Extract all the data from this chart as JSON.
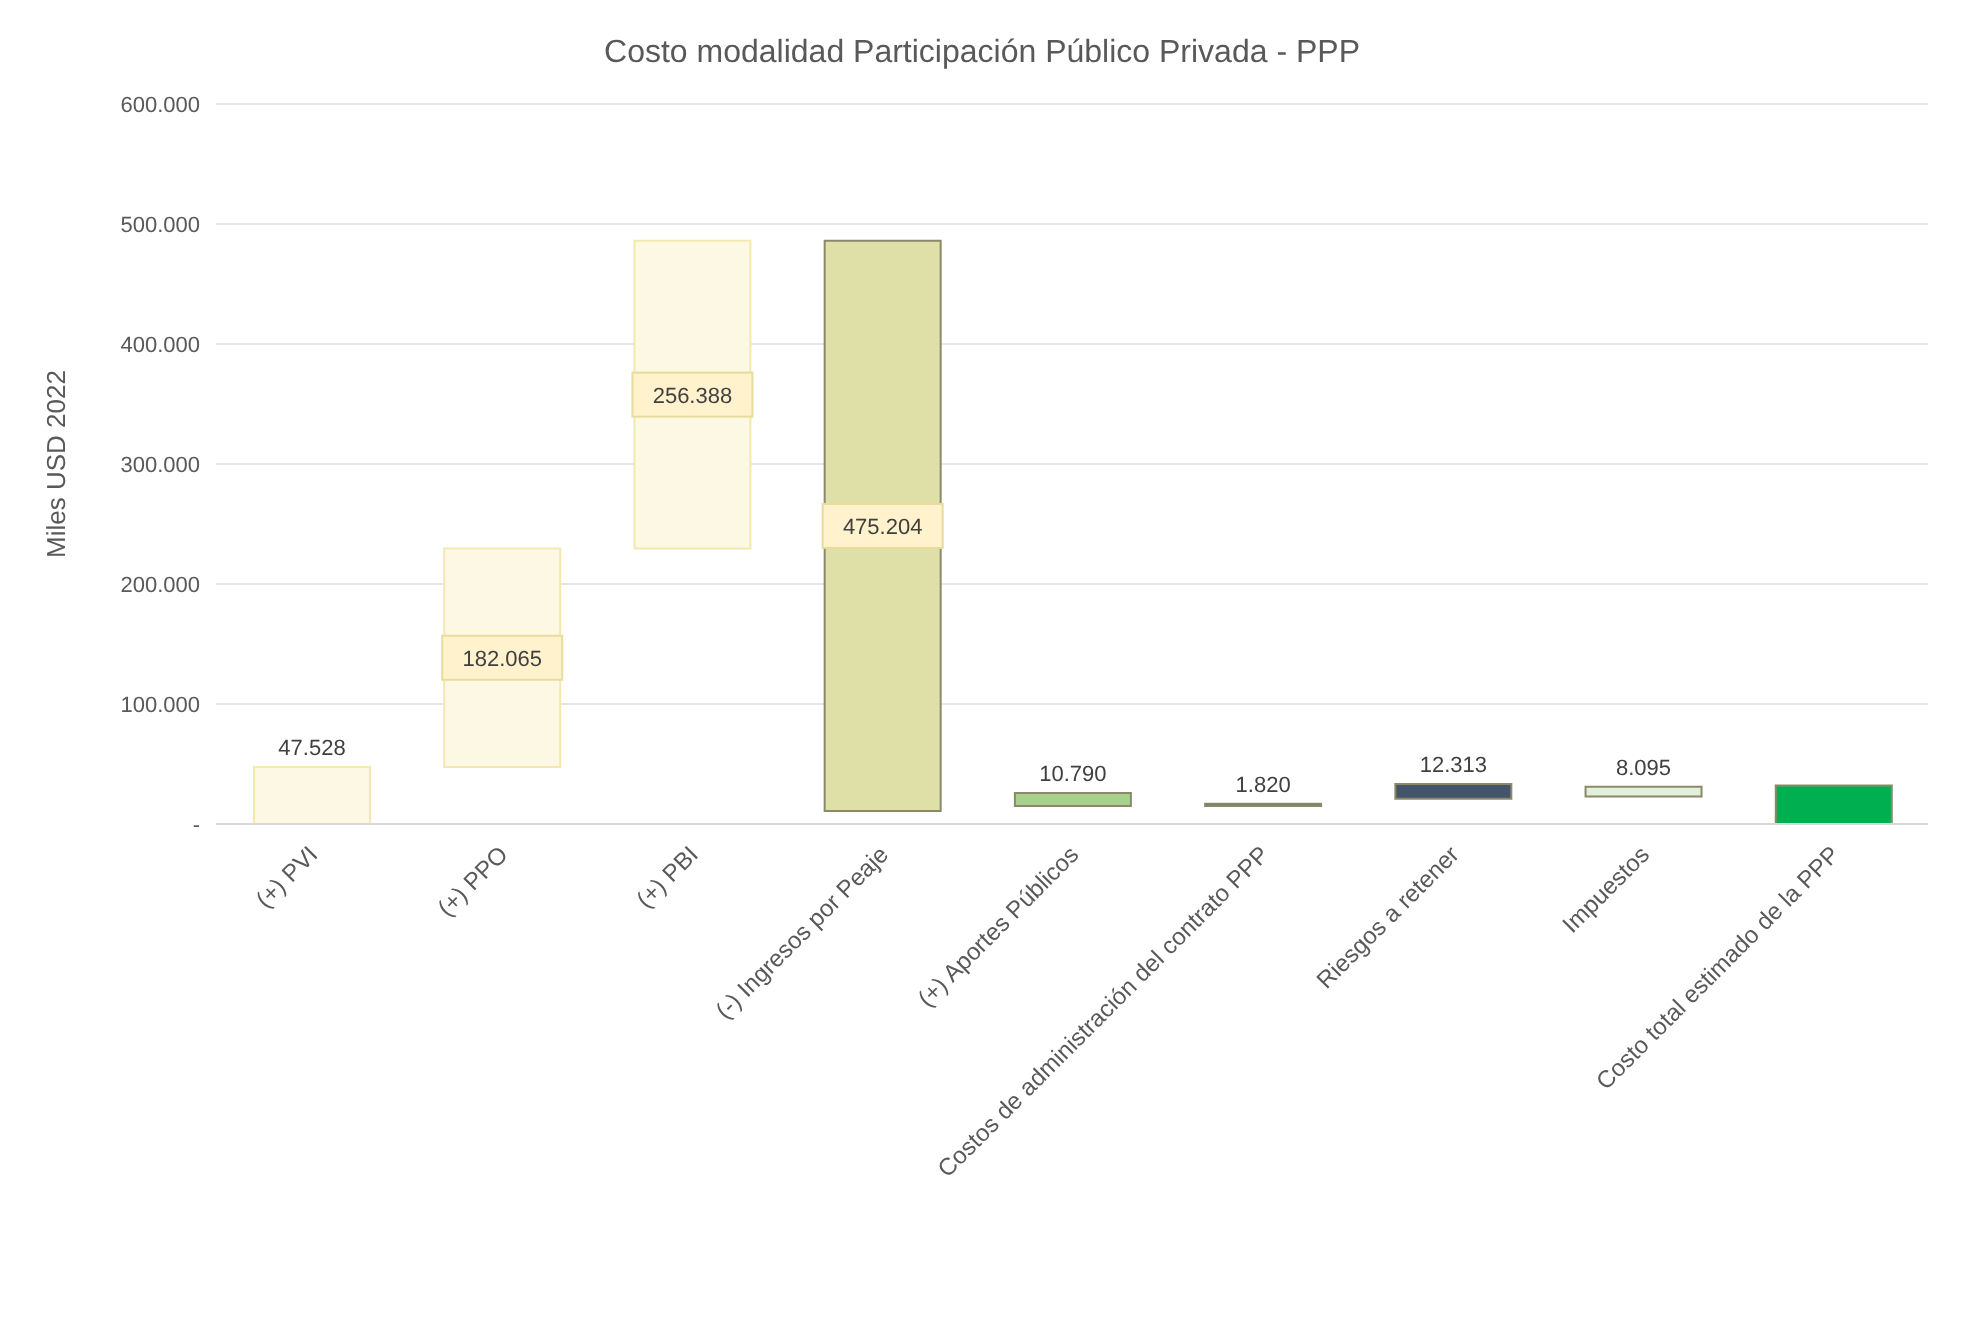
{
  "chart_data": {
    "type": "bar",
    "title": "Costo modalidad Participación Público Privada - PPP",
    "ylabel": "Miles USD 2022",
    "categories": [
      "(+) PVI",
      "(+) PPO",
      "(+) PBI",
      "(-) Ingresos por Peaje",
      "(+) Aportes Públicos",
      "Costos de administración del contrato PPP",
      "Riesgos a retener",
      "Impuestos",
      "Costo total estimado de la PPP"
    ],
    "values": [
      47528,
      182065,
      256388,
      475204,
      10790,
      1820,
      12313,
      8095,
      32000
    ],
    "base": [
      0,
      47528,
      229593,
      10777,
      15000,
      15000,
      21000,
      23000,
      0
    ],
    "colors": [
      "#fdf8e4",
      "#fdf8e4",
      "#fdf8e4",
      "#dfe0a8",
      "#a9d18e",
      "#44546a",
      "#44546a",
      "#e2efd9",
      "#00b050"
    ],
    "value_labels": [
      "47.528",
      "182.065",
      "256.388",
      "475.204",
      "10.790",
      "1.820",
      "12.313",
      "8.095",
      null
    ],
    "ylim": [
      0,
      600000
    ],
    "yticks": [
      {
        "value": 0,
        "label": "-"
      },
      {
        "value": 100000,
        "label": "100.000"
      },
      {
        "value": 200000,
        "label": "200.000"
      },
      {
        "value": 300000,
        "label": "300.000"
      },
      {
        "value": 400000,
        "label": "400.000"
      },
      {
        "value": 500000,
        "label": "500.000"
      },
      {
        "value": 600000,
        "label": "600.000"
      }
    ],
    "grid": "y",
    "legend": false
  }
}
